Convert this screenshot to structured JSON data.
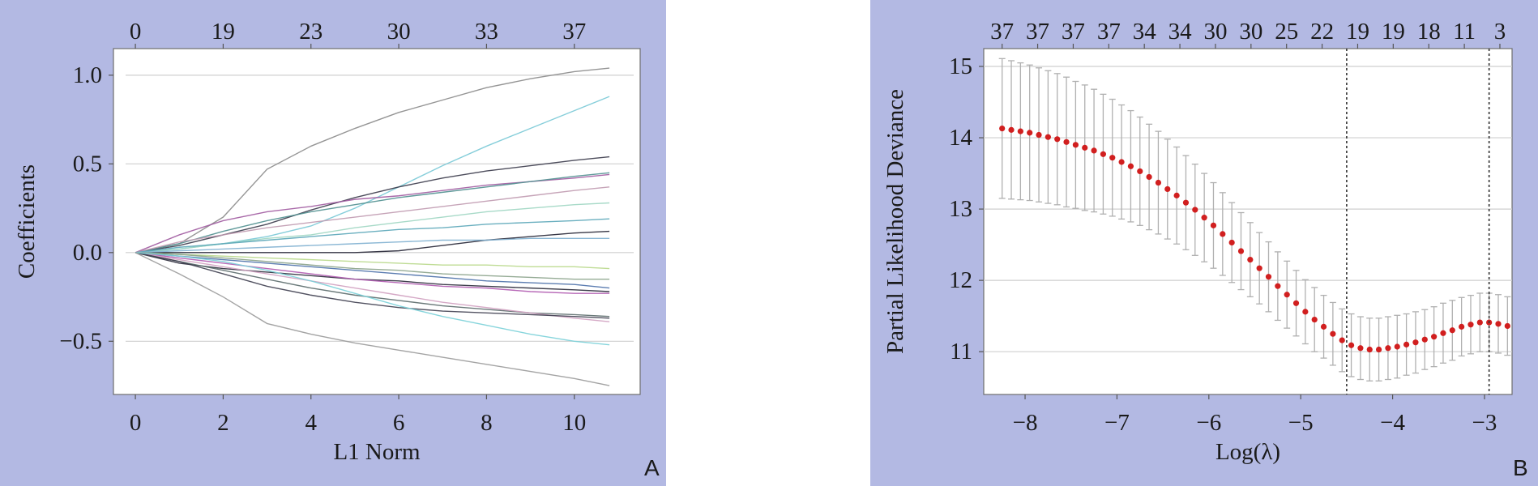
{
  "panel_labels": {
    "a": "A",
    "b": "B"
  },
  "chart_data": [
    {
      "type": "line",
      "title": "",
      "xlabel": "L1 Norm",
      "ylabel": "Coefficients",
      "xlim": [
        -0.5,
        11.5
      ],
      "ylim": [
        -0.8,
        1.15
      ],
      "x_ticks": [
        "0",
        "2",
        "4",
        "6",
        "8",
        "10"
      ],
      "y_ticks": [
        "1.0",
        "0.5",
        "0.0",
        "−0.5"
      ],
      "top_axis_ticks": [
        "0",
        "19",
        "23",
        "30",
        "33",
        "37"
      ],
      "grid": "horizontal",
      "legend": "none",
      "x": [
        0,
        1,
        2,
        3,
        4,
        5,
        6,
        7,
        8,
        9,
        10,
        10.8
      ],
      "series": [
        {
          "color": "#8a8a8a",
          "values": [
            0,
            0.05,
            0.2,
            0.47,
            0.6,
            0.7,
            0.79,
            0.86,
            0.93,
            0.98,
            1.02,
            1.04
          ]
        },
        {
          "color": "#79c9d6",
          "values": [
            0,
            0.02,
            0.05,
            0.09,
            0.15,
            0.25,
            0.37,
            0.49,
            0.6,
            0.7,
            0.8,
            0.88
          ]
        },
        {
          "color": "#3a3a4a",
          "values": [
            0,
            0.04,
            0.1,
            0.16,
            0.24,
            0.31,
            0.37,
            0.42,
            0.46,
            0.49,
            0.52,
            0.54
          ]
        },
        {
          "color": "#a05aa0",
          "values": [
            0,
            0.1,
            0.18,
            0.23,
            0.26,
            0.3,
            0.32,
            0.35,
            0.38,
            0.4,
            0.42,
            0.44
          ]
        },
        {
          "color": "#4f8f8f",
          "values": [
            0,
            0.05,
            0.12,
            0.18,
            0.23,
            0.27,
            0.31,
            0.34,
            0.37,
            0.4,
            0.43,
            0.45
          ]
        },
        {
          "color": "#c09ab0",
          "values": [
            0,
            0.06,
            0.1,
            0.14,
            0.17,
            0.2,
            0.23,
            0.26,
            0.29,
            0.32,
            0.35,
            0.37
          ]
        },
        {
          "color": "#9fd6c2",
          "values": [
            0,
            0.02,
            0.05,
            0.08,
            0.1,
            0.14,
            0.17,
            0.2,
            0.23,
            0.25,
            0.27,
            0.28
          ]
        },
        {
          "color": "#5aa6b8",
          "values": [
            0,
            0.03,
            0.05,
            0.07,
            0.09,
            0.11,
            0.13,
            0.14,
            0.16,
            0.17,
            0.18,
            0.19
          ]
        },
        {
          "color": "#222233",
          "values": [
            0,
            0,
            0,
            0,
            0,
            0,
            0.01,
            0.04,
            0.07,
            0.09,
            0.11,
            0.12
          ]
        },
        {
          "color": "#7fb0d0",
          "values": [
            0,
            0.01,
            0.02,
            0.03,
            0.04,
            0.05,
            0.06,
            0.07,
            0.07,
            0.08,
            0.08,
            0.08
          ]
        },
        {
          "color": "#b8d88a",
          "values": [
            0,
            -0.01,
            -0.02,
            -0.03,
            -0.04,
            -0.05,
            -0.06,
            -0.07,
            -0.07,
            -0.08,
            -0.08,
            -0.09
          ]
        },
        {
          "color": "#4a6fa8",
          "values": [
            0,
            -0.02,
            -0.04,
            -0.06,
            -0.08,
            -0.1,
            -0.12,
            -0.14,
            -0.16,
            -0.17,
            -0.18,
            -0.2
          ]
        },
        {
          "color": "#8aa28a",
          "values": [
            0,
            -0.01,
            -0.03,
            -0.05,
            -0.07,
            -0.09,
            -0.1,
            -0.12,
            -0.13,
            -0.14,
            -0.15,
            -0.15
          ]
        },
        {
          "color": "#2a2a3a",
          "values": [
            0,
            -0.06,
            -0.09,
            -0.11,
            -0.13,
            -0.15,
            -0.16,
            -0.18,
            -0.19,
            -0.2,
            -0.21,
            -0.22
          ]
        },
        {
          "color": "#b05ab0",
          "values": [
            0,
            -0.03,
            -0.06,
            -0.09,
            -0.12,
            -0.15,
            -0.17,
            -0.19,
            -0.2,
            -0.22,
            -0.23,
            -0.23
          ]
        },
        {
          "color": "#5a6a6a",
          "values": [
            0,
            -0.05,
            -0.1,
            -0.15,
            -0.2,
            -0.24,
            -0.27,
            -0.3,
            -0.32,
            -0.34,
            -0.35,
            -0.36
          ]
        },
        {
          "color": "#d0a0c0",
          "values": [
            0,
            -0.04,
            -0.08,
            -0.12,
            -0.16,
            -0.2,
            -0.24,
            -0.28,
            -0.31,
            -0.34,
            -0.37,
            -0.39
          ]
        },
        {
          "color": "#3f3f50",
          "values": [
            0,
            -0.05,
            -0.12,
            -0.19,
            -0.24,
            -0.28,
            -0.31,
            -0.33,
            -0.34,
            -0.35,
            -0.36,
            -0.37
          ]
        },
        {
          "color": "#7ad0d8",
          "values": [
            0,
            -0.02,
            -0.05,
            -0.1,
            -0.16,
            -0.23,
            -0.3,
            -0.36,
            -0.41,
            -0.46,
            -0.5,
            -0.52
          ]
        },
        {
          "color": "#9a9a9a",
          "values": [
            0,
            -0.12,
            -0.25,
            -0.4,
            -0.46,
            -0.51,
            -0.55,
            -0.59,
            -0.63,
            -0.67,
            -0.71,
            -0.75
          ]
        }
      ]
    },
    {
      "type": "scatter",
      "title": "",
      "xlabel": "Log(λ)",
      "ylabel": "Partial Likelihood Deviance",
      "xlim": [
        -8.45,
        -2.7
      ],
      "ylim": [
        10.4,
        15.25
      ],
      "x_ticks": [
        "−8",
        "−7",
        "−6",
        "−5",
        "−4",
        "−3"
      ],
      "y_ticks": [
        "15",
        "14",
        "13",
        "12",
        "11"
      ],
      "top_axis_ticks": [
        "37",
        "37",
        "37",
        "37",
        "34",
        "34",
        "30",
        "30",
        "25",
        "22",
        "19",
        "19",
        "18",
        "11",
        "3"
      ],
      "grid": "horizontal",
      "legend": "none",
      "point_color": "#d11f1f",
      "errorbar_color": "#b0b0b0",
      "vlines": [
        -4.5,
        -2.95
      ],
      "x_start": -8.25,
      "x_step": 0.1,
      "values": [
        14.13,
        14.11,
        14.09,
        14.07,
        14.04,
        14.01,
        13.98,
        13.94,
        13.9,
        13.86,
        13.82,
        13.77,
        13.72,
        13.66,
        13.6,
        13.53,
        13.45,
        13.37,
        13.28,
        13.19,
        13.09,
        12.99,
        12.88,
        12.77,
        12.65,
        12.53,
        12.41,
        12.29,
        12.17,
        12.05,
        11.92,
        11.8,
        11.68,
        11.56,
        11.45,
        11.35,
        11.25,
        11.16,
        11.09,
        11.05,
        11.03,
        11.03,
        11.05,
        11.07,
        11.1,
        11.13,
        11.17,
        11.21,
        11.26,
        11.3,
        11.35,
        11.38,
        11.41,
        11.41,
        11.39,
        11.36
      ],
      "errors": [
        0.98,
        0.97,
        0.96,
        0.95,
        0.94,
        0.93,
        0.92,
        0.91,
        0.89,
        0.88,
        0.86,
        0.84,
        0.82,
        0.8,
        0.78,
        0.76,
        0.74,
        0.72,
        0.7,
        0.68,
        0.66,
        0.64,
        0.62,
        0.6,
        0.58,
        0.56,
        0.54,
        0.52,
        0.5,
        0.49,
        0.48,
        0.47,
        0.46,
        0.45,
        0.45,
        0.44,
        0.44,
        0.44,
        0.44,
        0.44,
        0.44,
        0.44,
        0.44,
        0.44,
        0.43,
        0.43,
        0.42,
        0.42,
        0.42,
        0.42,
        0.41,
        0.41,
        0.41,
        0.41,
        0.41,
        0.41
      ]
    }
  ]
}
